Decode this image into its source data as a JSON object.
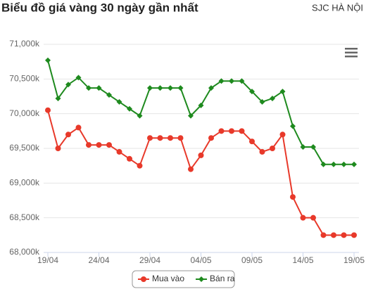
{
  "chart_data": {
    "type": "line",
    "title": "Biểu đồ giá vàng 30 ngày gần nhất",
    "subtitle": "SJC HÀ NỘI",
    "categories": [
      "19/04",
      null,
      null,
      null,
      null,
      "24/04",
      null,
      null,
      null,
      null,
      "29/04",
      null,
      null,
      null,
      null,
      "04/05",
      null,
      null,
      null,
      null,
      "09/05",
      null,
      null,
      null,
      null,
      "14/05",
      null,
      null,
      null,
      null,
      "19/05"
    ],
    "series": [
      {
        "name": "Mua vào",
        "color": "#e8392a",
        "marker": "circle",
        "values": [
          70050,
          69500,
          69700,
          69800,
          69550,
          69550,
          69550,
          69450,
          69350,
          69250,
          69650,
          69650,
          69650,
          69650,
          69200,
          69400,
          69650,
          69750,
          69750,
          69750,
          69600,
          69450,
          69500,
          69700,
          68800,
          68500,
          68500,
          68250,
          68250,
          68250,
          68250
        ]
      },
      {
        "name": "Bán ra",
        "color": "#1e8a1e",
        "marker": "diamond",
        "values": [
          70770,
          70220,
          70420,
          70520,
          70370,
          70370,
          70270,
          70170,
          70070,
          69970,
          70370,
          70370,
          70370,
          70370,
          69970,
          70120,
          70370,
          70470,
          70470,
          70470,
          70320,
          70170,
          70220,
          70320,
          69820,
          69520,
          69520,
          69270,
          69270,
          69270,
          69270
        ]
      }
    ],
    "ylim": [
      68000,
      71000
    ],
    "yticks": [
      {
        "value": 68000,
        "label": "68,000k"
      },
      {
        "value": 68500,
        "label": "68,500k"
      },
      {
        "value": 69000,
        "label": "69,000k"
      },
      {
        "value": 69500,
        "label": "69,500k"
      },
      {
        "value": 70000,
        "label": "70,000k"
      },
      {
        "value": 70500,
        "label": "70,500k"
      },
      {
        "value": 71000,
        "label": "71,000k"
      }
    ],
    "grid": true,
    "legend": "bottom"
  }
}
